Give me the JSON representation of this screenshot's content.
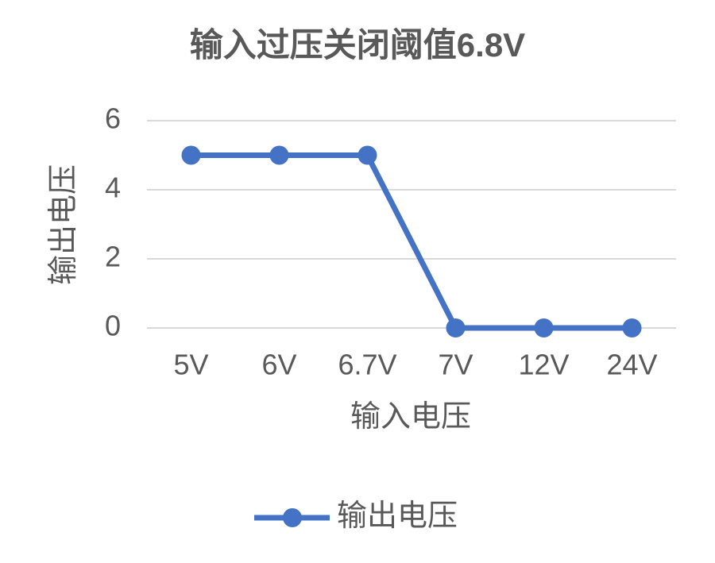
{
  "chart_data": {
    "type": "line",
    "title": "输入过压关闭阈值6.8V",
    "x_label": "输入电压",
    "y_label": "输出电压",
    "categories": [
      "5V",
      "6V",
      "6.7V",
      "7V",
      "12V",
      "24V"
    ],
    "series": [
      {
        "name": "输出电压",
        "color": "#4472c4",
        "values": [
          5,
          5,
          5,
          0,
          0,
          0
        ]
      }
    ],
    "ylim": [
      0,
      6
    ],
    "yticks": [
      0,
      2,
      4,
      6
    ],
    "grid": true,
    "legend": "bottom"
  }
}
